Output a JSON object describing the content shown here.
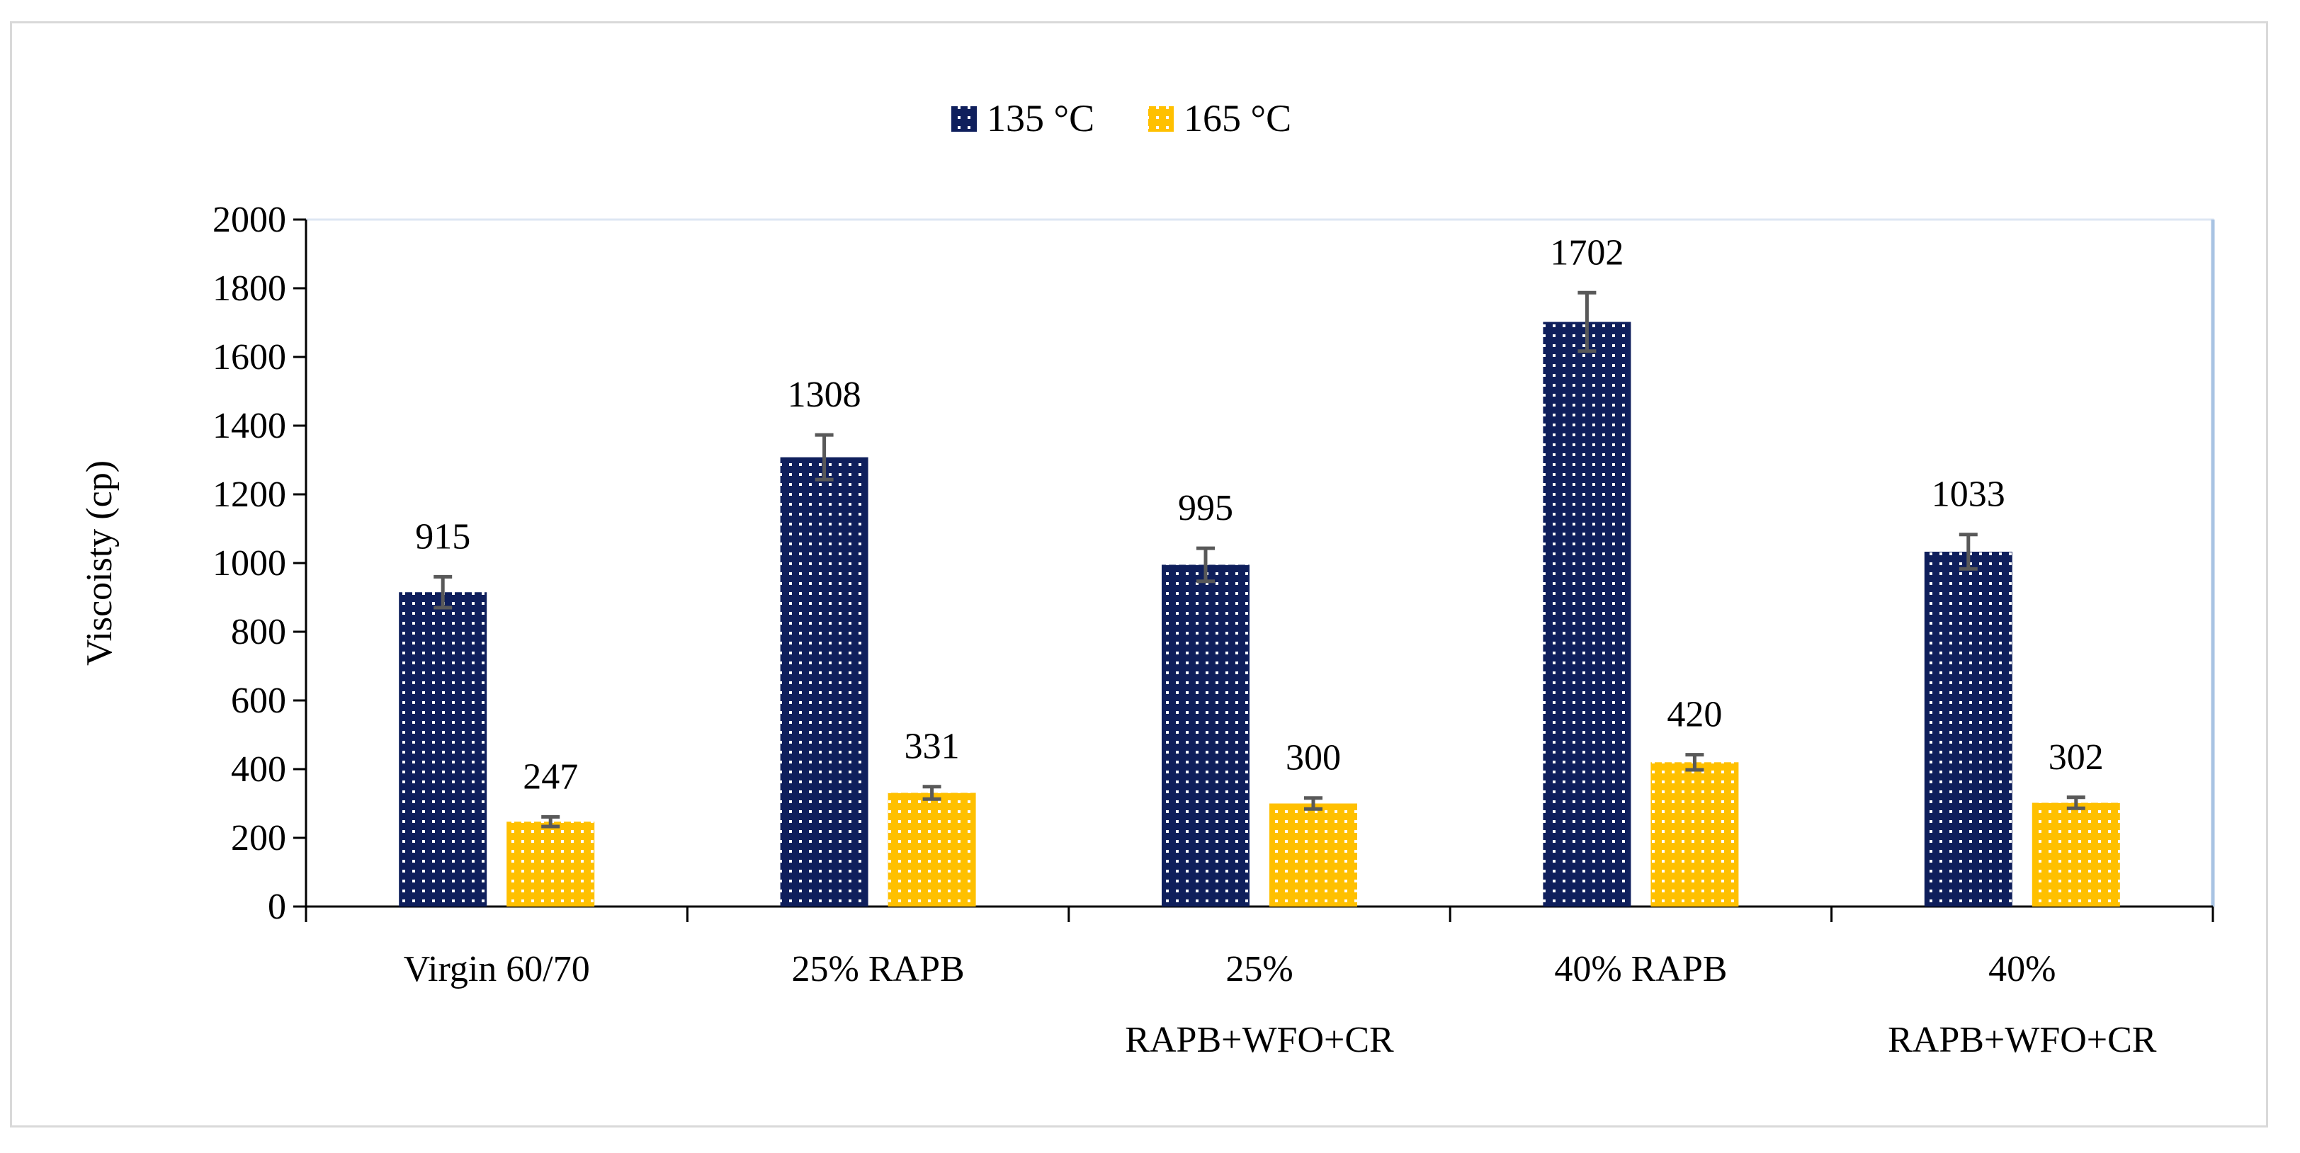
{
  "chart_data": {
    "type": "bar",
    "title": "",
    "xlabel": "",
    "ylabel": "Viscoisty (cp)",
    "ylim": [
      0,
      2000
    ],
    "yticks": [
      "0",
      "200",
      "400",
      "600",
      "800",
      "1000",
      "1200",
      "1400",
      "1600",
      "1800",
      "2000"
    ],
    "categories": [
      [
        "Virgin 60/70"
      ],
      [
        "25% RAPB"
      ],
      [
        "25%",
        "RAPB+WFO+CR"
      ],
      [
        "40% RAPB"
      ],
      [
        "40%",
        "RAPB+WFO+CR"
      ]
    ],
    "series": [
      {
        "name": "135 °C",
        "color": "#0f1f5c",
        "values": [
          915,
          1308,
          995,
          1702,
          1033
        ],
        "labels": [
          "915",
          "1308",
          "995",
          "1702",
          "1033"
        ],
        "error": [
          45,
          65,
          48,
          85,
          50
        ]
      },
      {
        "name": "165 °C",
        "color": "#ffc000",
        "values": [
          247,
          331,
          300,
          420,
          302
        ],
        "labels": [
          "247",
          "331",
          "300",
          "420",
          "302"
        ],
        "error": [
          14,
          18,
          16,
          22,
          16
        ]
      }
    ],
    "legend_position": "top-center",
    "grid": false
  }
}
